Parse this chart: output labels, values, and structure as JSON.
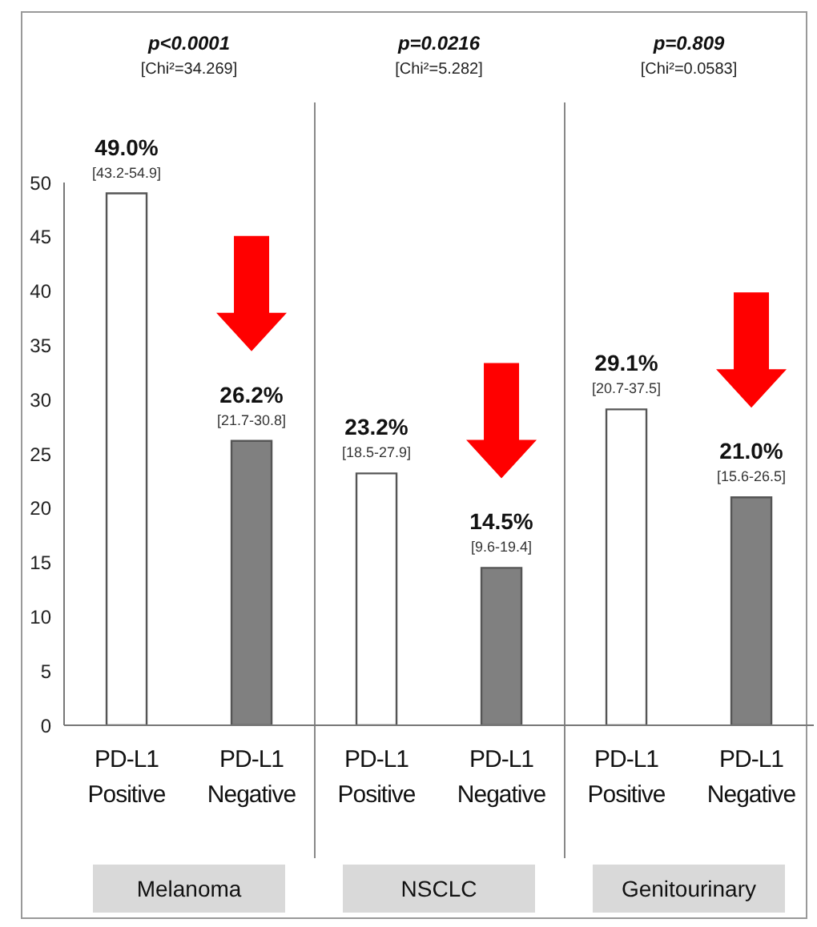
{
  "chart_data": {
    "type": "bar",
    "categories": [
      "PD-L1 Positive",
      "PD-L1 Negative",
      "PD-L1 Positive",
      "PD-L1 Negative",
      "PD-L1 Positive",
      "PD-L1 Negative"
    ],
    "values": [
      49.0,
      26.2,
      23.2,
      14.5,
      29.1,
      21.0
    ],
    "colors": [
      "#ffffff",
      "#808080",
      "#ffffff",
      "#808080",
      "#ffffff",
      "#808080"
    ],
    "value_labels": [
      "49.0%\n[43.2-54.9]",
      "26.2%\n[21.7-30.8]",
      "23.2%\n[18.5-27.9]",
      "14.5%\n[9.6-19.4]",
      "29.1%\n[20.7-37.5]",
      "21.0%\n[15.6-26.5]"
    ],
    "ylim": [
      0,
      50
    ],
    "yticks": [
      0,
      5,
      10,
      15,
      20,
      25,
      30,
      35,
      40,
      45,
      50
    ],
    "annotations": [
      "p<0.0001",
      "[Chi²=34.269]",
      "Melanoma",
      "p=0.0216",
      "[Chi²=5.282]",
      "NSCLC",
      "p=0.809",
      "[Chi²=0.0583]",
      "Genitourinary"
    ],
    "grid": false,
    "legend": false
  }
}
